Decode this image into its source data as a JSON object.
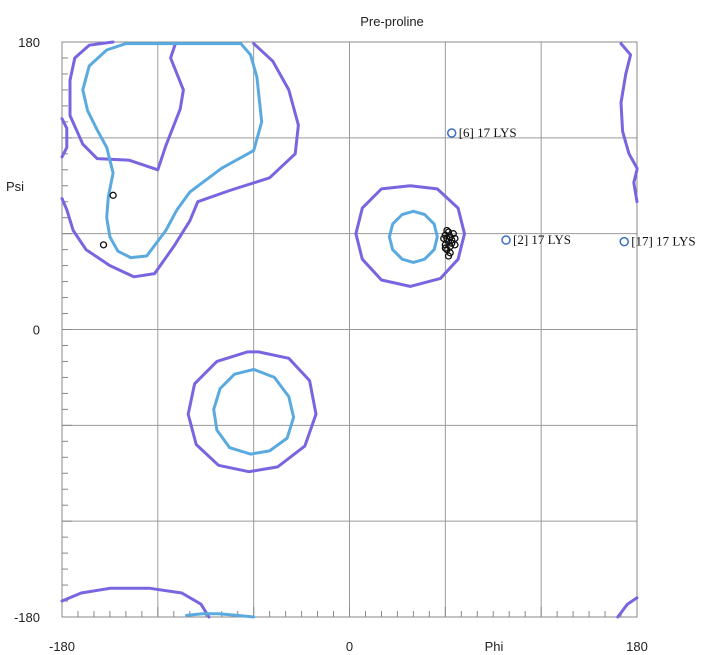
{
  "chart_data": {
    "type": "scatter",
    "title": "Pre-proline",
    "xlabel": "Phi",
    "ylabel": "Psi",
    "xlim": [
      -180,
      180
    ],
    "ylim": [
      -180,
      180
    ],
    "x_tick_labels": [
      {
        "value": -180,
        "label": "-180"
      },
      {
        "value": 0,
        "label": "0"
      },
      {
        "value": 180,
        "label": "180"
      }
    ],
    "y_tick_labels": [
      {
        "value": 180,
        "label": "180"
      },
      {
        "value": 0,
        "label": "0"
      },
      {
        "value": -180,
        "label": "-180"
      }
    ],
    "grid": true,
    "contour_colors": {
      "favored": "#5aaae0",
      "allowed": "#7766e0"
    },
    "outlier_color": "#3a6fc0",
    "contours": {
      "favored": [
        [
          [
            -120,
            179
          ],
          [
            -68,
            179
          ],
          [
            -62,
            172
          ],
          [
            -58,
            158
          ],
          [
            -55,
            130
          ],
          [
            -60,
            112
          ],
          [
            -80,
            101
          ],
          [
            -100,
            86
          ],
          [
            -108,
            75
          ],
          [
            -115,
            62
          ],
          [
            -127,
            46
          ],
          [
            -137,
            45
          ],
          [
            -145,
            49
          ],
          [
            -150,
            58
          ],
          [
            -152,
            70
          ],
          [
            -151,
            83
          ],
          [
            -148,
            98
          ],
          [
            -152,
            114
          ],
          [
            -158,
            125
          ],
          [
            -164,
            137
          ],
          [
            -167,
            150
          ],
          [
            -163,
            165
          ],
          [
            -152,
            175
          ],
          [
            -140,
            179
          ],
          [
            -120,
            179
          ]
        ],
        [
          [
            40,
            74
          ],
          [
            47,
            72
          ],
          [
            53,
            66
          ],
          [
            55,
            58
          ],
          [
            53,
            50
          ],
          [
            47,
            44
          ],
          [
            40,
            42
          ],
          [
            33,
            44
          ],
          [
            27,
            50
          ],
          [
            25,
            58
          ],
          [
            27,
            66
          ],
          [
            33,
            72
          ],
          [
            40,
            74
          ]
        ],
        [
          [
            -60,
            -25
          ],
          [
            -47,
            -30
          ],
          [
            -38,
            -42
          ],
          [
            -35,
            -55
          ],
          [
            -39,
            -68
          ],
          [
            -50,
            -76
          ],
          [
            -62,
            -78
          ],
          [
            -75,
            -74
          ],
          [
            -83,
            -63
          ],
          [
            -85,
            -50
          ],
          [
            -81,
            -37
          ],
          [
            -72,
            -28
          ],
          [
            -60,
            -25
          ]
        ],
        [
          [
            -102,
            -179
          ],
          [
            -92,
            -178
          ],
          [
            -82,
            -178
          ],
          [
            -70,
            -179
          ],
          [
            -60,
            -180
          ]
        ]
      ],
      "allowed": [
        [
          [
            -60,
            179
          ],
          [
            -48,
            168
          ],
          [
            -38,
            150
          ],
          [
            -32,
            128
          ],
          [
            -34,
            110
          ],
          [
            -50,
            95
          ],
          [
            -75,
            87
          ],
          [
            -95,
            80
          ],
          [
            -100,
            68
          ],
          [
            -110,
            52
          ],
          [
            -122,
            35
          ],
          [
            -135,
            33
          ],
          [
            -150,
            40
          ],
          [
            -165,
            50
          ],
          [
            -173,
            62
          ],
          [
            -177,
            75
          ],
          [
            -180,
            82
          ]
        ],
        [
          [
            -180,
            108
          ],
          [
            -177,
            114
          ],
          [
            -177,
            126
          ],
          [
            -180,
            132
          ]
        ],
        [
          [
            -109,
            179
          ],
          [
            -112,
            170
          ],
          [
            -108,
            160
          ],
          [
            -104,
            150
          ],
          [
            -106,
            138
          ],
          [
            -115,
            115
          ],
          [
            -120,
            100
          ],
          [
            -138,
            106
          ],
          [
            -158,
            107
          ],
          [
            -167,
            116
          ],
          [
            -175,
            134
          ],
          [
            -175,
            156
          ],
          [
            -172,
            170
          ],
          [
            -163,
            178
          ],
          [
            -148,
            180
          ]
        ],
        [
          [
            38,
            90
          ],
          [
            55,
            88
          ],
          [
            68,
            76
          ],
          [
            72,
            60
          ],
          [
            68,
            44
          ],
          [
            57,
            32
          ],
          [
            38,
            27
          ],
          [
            20,
            31
          ],
          [
            8,
            44
          ],
          [
            4,
            60
          ],
          [
            8,
            76
          ],
          [
            20,
            88
          ],
          [
            38,
            90
          ]
        ],
        [
          [
            -57,
            -14
          ],
          [
            -38,
            -18
          ],
          [
            -25,
            -32
          ],
          [
            -21,
            -53
          ],
          [
            -28,
            -73
          ],
          [
            -45,
            -86
          ],
          [
            -63,
            -89
          ],
          [
            -82,
            -85
          ],
          [
            -96,
            -72
          ],
          [
            -101,
            -53
          ],
          [
            -97,
            -34
          ],
          [
            -83,
            -20
          ],
          [
            -64,
            -14
          ],
          [
            -57,
            -14
          ]
        ],
        [
          [
            170,
            179
          ],
          [
            176,
            172
          ],
          [
            173,
            160
          ],
          [
            170,
            142
          ],
          [
            171,
            124
          ],
          [
            175,
            110
          ],
          [
            180,
            101
          ]
        ],
        [
          [
            180,
            100
          ],
          [
            178,
            92
          ],
          [
            180,
            80
          ]
        ],
        [
          [
            -180,
            -170
          ],
          [
            -168,
            -165
          ],
          [
            -150,
            -162
          ],
          [
            -125,
            -162
          ],
          [
            -105,
            -165
          ],
          [
            -93,
            -172
          ],
          [
            -88,
            -180
          ]
        ],
        [
          [
            168,
            -180
          ],
          [
            174,
            -172
          ],
          [
            180,
            -168
          ]
        ]
      ]
    },
    "points": [
      {
        "x": -148,
        "y": 84
      },
      {
        "x": -154,
        "y": 53
      },
      {
        "x": 60,
        "y": 59
      },
      {
        "x": 62,
        "y": 61
      },
      {
        "x": 63,
        "y": 58
      },
      {
        "x": 61,
        "y": 57
      },
      {
        "x": 64,
        "y": 56
      },
      {
        "x": 60,
        "y": 53
      },
      {
        "x": 63,
        "y": 52
      },
      {
        "x": 62,
        "y": 55
      },
      {
        "x": 65,
        "y": 60
      },
      {
        "x": 66,
        "y": 57
      },
      {
        "x": 61,
        "y": 50
      },
      {
        "x": 63,
        "y": 48
      },
      {
        "x": 62,
        "y": 46
      },
      {
        "x": 64,
        "y": 54
      },
      {
        "x": 66,
        "y": 53
      },
      {
        "x": 60,
        "y": 51
      },
      {
        "x": 59,
        "y": 57
      },
      {
        "x": 61,
        "y": 62
      }
    ],
    "outliers": [
      {
        "x": 64,
        "y": 123,
        "label": "[6]   17 LYS"
      },
      {
        "x": 98,
        "y": 56,
        "label": "[2]   17 LYS"
      },
      {
        "x": 172,
        "y": 55,
        "label": "[17]   17 LYS"
      }
    ]
  }
}
